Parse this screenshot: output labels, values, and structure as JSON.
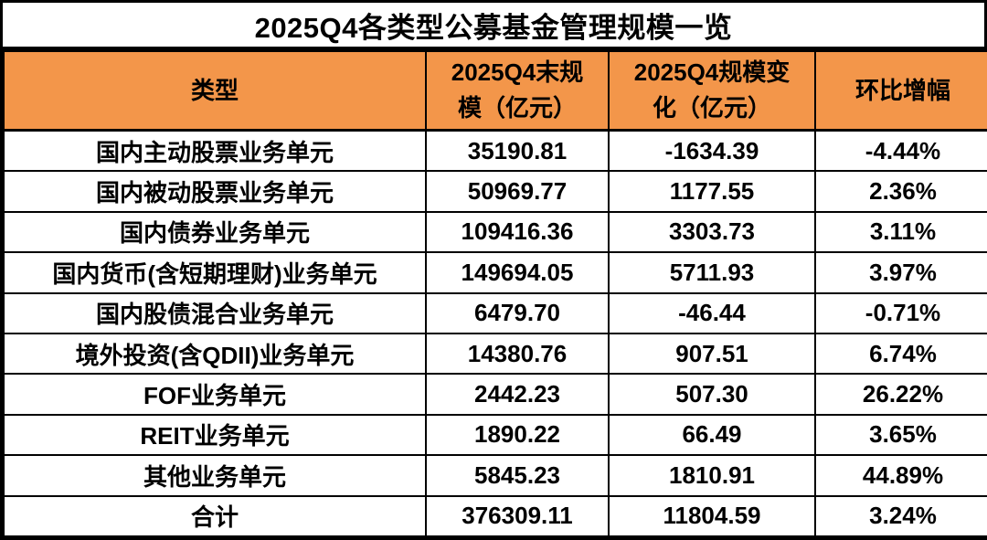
{
  "title": "2025Q4各类型公募基金管理规模一览",
  "colors": {
    "header_bg": "#F3964A",
    "border": "#000000",
    "title_bg": "#FFFFFF",
    "row_bg": "#FFFFFF",
    "text": "#000000"
  },
  "table": {
    "columns": [
      "类型",
      "2025Q4末规\n模（亿元）",
      "2025Q4规模变\n化（亿元）",
      "环比增幅"
    ],
    "rows": [
      [
        "国内主动股票业务单元",
        "35190.81",
        "-1634.39",
        "-4.44%"
      ],
      [
        "国内被动股票业务单元",
        "50969.77",
        "1177.55",
        "2.36%"
      ],
      [
        "国内债券业务单元",
        "109416.36",
        "3303.73",
        "3.11%"
      ],
      [
        "国内货币(含短期理财)业务单元",
        "149694.05",
        "5711.93",
        "3.97%"
      ],
      [
        "国内股债混合业务单元",
        "6479.70",
        "-46.44",
        "-0.71%"
      ],
      [
        "境外投资(含QDII)业务单元",
        "14380.76",
        "907.51",
        "6.74%"
      ],
      [
        "FOF业务单元",
        "2442.23",
        "507.30",
        "26.22%"
      ],
      [
        "REIT业务单元",
        "1890.22",
        "66.49",
        "3.65%"
      ],
      [
        "其他业务单元",
        "5845.23",
        "1810.91",
        "44.89%"
      ],
      [
        "合计",
        "376309.11",
        "11804.59",
        "3.24%"
      ]
    ]
  },
  "chart_data": {
    "type": "table",
    "title": "2025Q4各类型公募基金管理规模一览",
    "columns": [
      "类型",
      "2025Q4末规模（亿元）",
      "2025Q4规模变化（亿元）",
      "环比增幅"
    ],
    "rows": [
      {
        "category": "国内主动股票业务单元",
        "end_scale_yi_yuan": 35190.81,
        "change_yi_yuan": -1634.39,
        "qoq_growth_pct": -4.44
      },
      {
        "category": "国内被动股票业务单元",
        "end_scale_yi_yuan": 50969.77,
        "change_yi_yuan": 1177.55,
        "qoq_growth_pct": 2.36
      },
      {
        "category": "国内债券业务单元",
        "end_scale_yi_yuan": 109416.36,
        "change_yi_yuan": 3303.73,
        "qoq_growth_pct": 3.11
      },
      {
        "category": "国内货币(含短期理财)业务单元",
        "end_scale_yi_yuan": 149694.05,
        "change_yi_yuan": 5711.93,
        "qoq_growth_pct": 3.97
      },
      {
        "category": "国内股债混合业务单元",
        "end_scale_yi_yuan": 6479.7,
        "change_yi_yuan": -46.44,
        "qoq_growth_pct": -0.71
      },
      {
        "category": "境外投资(含QDII)业务单元",
        "end_scale_yi_yuan": 14380.76,
        "change_yi_yuan": 907.51,
        "qoq_growth_pct": 6.74
      },
      {
        "category": "FOF业务单元",
        "end_scale_yi_yuan": 2442.23,
        "change_yi_yuan": 507.3,
        "qoq_growth_pct": 26.22
      },
      {
        "category": "REIT业务单元",
        "end_scale_yi_yuan": 1890.22,
        "change_yi_yuan": 66.49,
        "qoq_growth_pct": 3.65
      },
      {
        "category": "其他业务单元",
        "end_scale_yi_yuan": 5845.23,
        "change_yi_yuan": 1810.91,
        "qoq_growth_pct": 44.89
      },
      {
        "category": "合计",
        "end_scale_yi_yuan": 376309.11,
        "change_yi_yuan": 11804.59,
        "qoq_growth_pct": 3.24
      }
    ]
  }
}
